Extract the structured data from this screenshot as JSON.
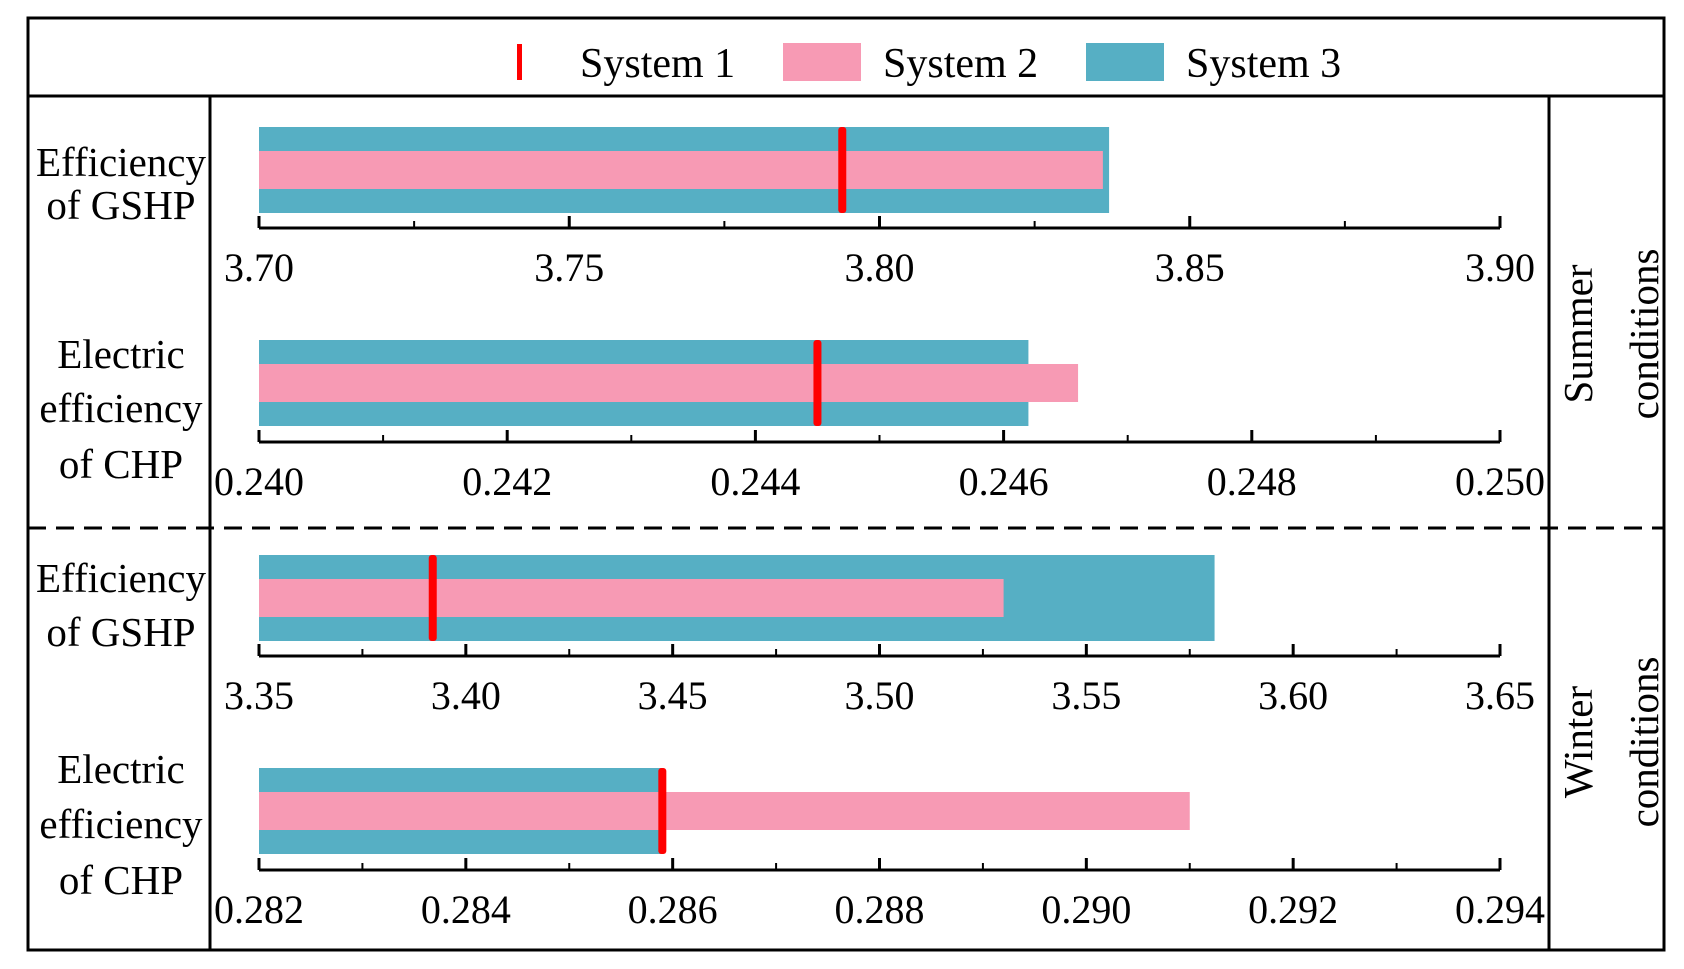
{
  "legend": {
    "items": [
      {
        "label": "System 1",
        "color": "#ff0000",
        "kind": "marker"
      },
      {
        "label": "System 2",
        "color": "#f79ab4",
        "kind": "bar"
      },
      {
        "label": "System 3",
        "color": "#56afc4",
        "kind": "bar"
      }
    ]
  },
  "sections": [
    {
      "label_lines": [
        "Summer",
        "conditions"
      ]
    },
    {
      "label_lines": [
        "Winter",
        "conditions"
      ]
    }
  ],
  "chart_data": [
    {
      "type": "bar",
      "orientation": "horizontal",
      "condition": "Summer",
      "label_lines": [
        "Efficiency",
        "of GSHP"
      ],
      "xlim": [
        3.7,
        3.9
      ],
      "ticks": [
        "3.70",
        "3.75",
        "3.80",
        "3.85",
        "3.90"
      ],
      "tick_values": [
        3.7,
        3.75,
        3.8,
        3.85,
        3.9
      ],
      "series": [
        {
          "name": "System 3",
          "value": 3.837
        },
        {
          "name": "System 2",
          "value": 3.836
        },
        {
          "name": "System 1",
          "value": 3.794
        }
      ]
    },
    {
      "type": "bar",
      "orientation": "horizontal",
      "condition": "Summer",
      "label_lines": [
        "Electric",
        "efficiency",
        "of CHP"
      ],
      "xlim": [
        0.24,
        0.25
      ],
      "ticks": [
        "0.240",
        "0.242",
        "0.244",
        "0.246",
        "0.248",
        "0.250"
      ],
      "tick_values": [
        0.24,
        0.242,
        0.244,
        0.246,
        0.248,
        0.25
      ],
      "series": [
        {
          "name": "System 3",
          "value": 0.2462
        },
        {
          "name": "System 2",
          "value": 0.2466
        },
        {
          "name": "System 1",
          "value": 0.2445
        }
      ]
    },
    {
      "type": "bar",
      "orientation": "horizontal",
      "condition": "Winter",
      "label_lines": [
        "Efficiency",
        "of GSHP"
      ],
      "xlim": [
        3.35,
        3.65
      ],
      "ticks": [
        "3.35",
        "3.40",
        "3.45",
        "3.50",
        "3.55",
        "3.60",
        "3.65"
      ],
      "tick_values": [
        3.35,
        3.4,
        3.45,
        3.5,
        3.55,
        3.6,
        3.65
      ],
      "series": [
        {
          "name": "System 3",
          "value": 3.581
        },
        {
          "name": "System 2",
          "value": 3.53
        },
        {
          "name": "System 1",
          "value": 3.392
        }
      ]
    },
    {
      "type": "bar",
      "orientation": "horizontal",
      "condition": "Winter",
      "label_lines": [
        "Electric",
        "efficiency",
        "of CHP"
      ],
      "xlim": [
        0.282,
        0.294
      ],
      "ticks": [
        "0.282",
        "0.284",
        "0.286",
        "0.288",
        "0.290",
        "0.292",
        "0.294"
      ],
      "tick_values": [
        0.282,
        0.284,
        0.286,
        0.288,
        0.29,
        0.292,
        0.294
      ],
      "series": [
        {
          "name": "System 3",
          "value": 0.2859
        },
        {
          "name": "System 2",
          "value": 0.291
        },
        {
          "name": "System 1",
          "value": 0.2859
        }
      ]
    }
  ]
}
